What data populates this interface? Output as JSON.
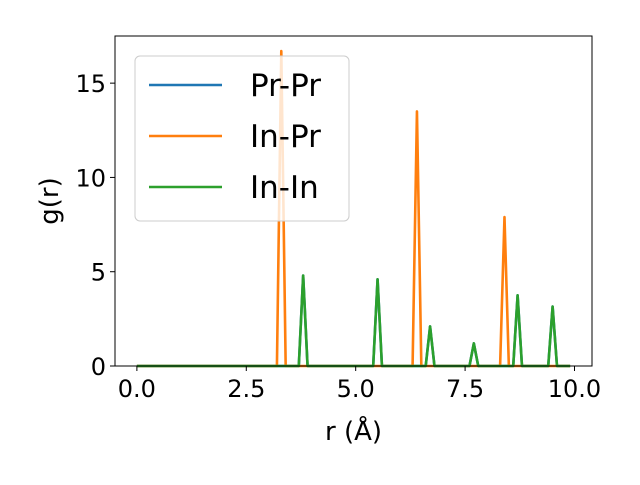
{
  "chart_data": {
    "type": "line",
    "xlabel": "r (Å)",
    "ylabel": "g(r)",
    "xlim": [
      -0.5,
      10.4
    ],
    "ylim": [
      0,
      17.5
    ],
    "x_ticks": [
      0.0,
      2.5,
      5.0,
      7.5,
      10.0
    ],
    "x_tick_labels": [
      "0.0",
      "2.5",
      "5.0",
      "7.5",
      "10.0"
    ],
    "y_ticks": [
      0,
      5,
      10,
      15
    ],
    "y_tick_labels": [
      "0",
      "5",
      "10",
      "15"
    ],
    "grid": false,
    "legend_position": "upper-left",
    "series": [
      {
        "name": "Pr-Pr",
        "color": "#1f77b4",
        "x": [
          0.0,
          3.7,
          3.8,
          3.9,
          5.4,
          5.5,
          5.6,
          6.6,
          6.7,
          6.8,
          7.6,
          7.7,
          7.8,
          8.6,
          8.7,
          8.8,
          9.4,
          9.5,
          9.6,
          9.9
        ],
        "y": [
          0,
          0,
          4.8,
          0,
          0,
          4.6,
          0,
          0,
          2.1,
          0,
          0,
          1.2,
          0,
          0,
          3.75,
          0,
          0,
          3.15,
          0,
          0
        ]
      },
      {
        "name": "In-Pr",
        "color": "#ff7f0e",
        "x": [
          0.0,
          3.2,
          3.3,
          3.4,
          6.3,
          6.4,
          6.5,
          8.3,
          8.4,
          8.5,
          9.9
        ],
        "y": [
          0,
          0,
          16.7,
          0,
          0,
          13.5,
          0,
          0,
          7.9,
          0,
          0
        ]
      },
      {
        "name": "In-In",
        "color": "#2ca02c",
        "x": [
          0.0,
          3.7,
          3.8,
          3.9,
          5.4,
          5.5,
          5.6,
          6.6,
          6.7,
          6.8,
          7.6,
          7.7,
          7.8,
          8.6,
          8.7,
          8.8,
          9.4,
          9.5,
          9.6,
          9.9
        ],
        "y": [
          0,
          0,
          4.8,
          0,
          0,
          4.6,
          0,
          0,
          2.1,
          0,
          0,
          1.2,
          0,
          0,
          3.75,
          0,
          0,
          3.15,
          0,
          0
        ]
      }
    ]
  }
}
